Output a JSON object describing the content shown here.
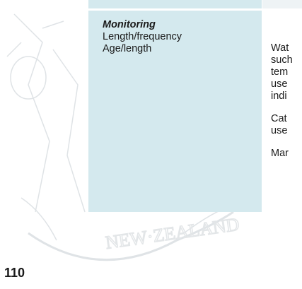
{
  "table": {
    "left_cell": {
      "heading": "Monitoring",
      "lines": [
        "Length/frequency",
        "Age/length"
      ]
    },
    "right_cell": {
      "paragraphs": [
        [
          "Wat",
          "such",
          "tem",
          "use",
          "indi"
        ],
        [
          "Cat",
          "use"
        ],
        [
          "Mar"
        ]
      ]
    }
  },
  "page_number": "110"
}
